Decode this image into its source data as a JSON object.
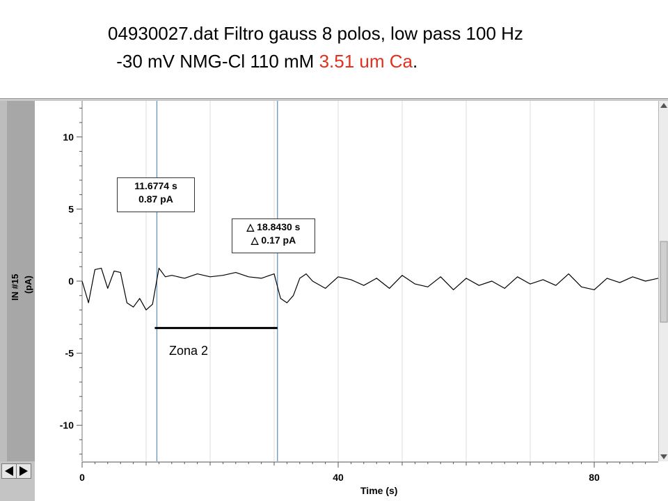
{
  "slide_title": {
    "line1": "04930027.dat Filtro gauss 8 polos, low pass 100 Hz",
    "line2_prefix": " -30 mV NMG-Cl 110 mM ",
    "line2_red": "3.51 um Ca",
    "line2_suffix": "."
  },
  "y_axis": {
    "channel_label": "IN #15",
    "unit_label": "(pA)",
    "ticks": [
      "10",
      "5",
      "0",
      "-5",
      "-10"
    ]
  },
  "x_axis": {
    "label": "Time (s)",
    "ticks": [
      "0",
      "40",
      "80"
    ]
  },
  "cursor_readout": {
    "time": "11.6774 s",
    "value": "0.87 pA"
  },
  "delta_readout": {
    "time": "18.8430 s",
    "value": "0.17 pA"
  },
  "annotation": {
    "zone_label": "Zona 2"
  },
  "colors": {
    "cursor_line": "#5b8db5",
    "highlight_title": "#e0301e",
    "trace": "#000000"
  },
  "icons": {
    "scale_up": "triangle-up-icon",
    "scale_down": "triangle-down-icon",
    "scroll_left": "triangle-left-icon",
    "scroll_right": "triangle-right-icon",
    "delta": "delta-icon"
  },
  "chart_data": {
    "type": "line",
    "xlabel": "Time (s)",
    "ylabel": "IN #15 (pA)",
    "xlim": [
      0,
      90
    ],
    "ylim": [
      -12.5,
      12.5
    ],
    "x_ticks": [
      0,
      40,
      80
    ],
    "y_ticks": [
      10,
      5,
      0,
      -5,
      -10
    ],
    "cursors_x": [
      11.68,
      30.52
    ],
    "series": [
      {
        "x": [
          0,
          1,
          2,
          3,
          4,
          5,
          6,
          7,
          8,
          9,
          10,
          11,
          12,
          13,
          14,
          16,
          18,
          20,
          22,
          24,
          26,
          28,
          30,
          31,
          32,
          33,
          34,
          35,
          36,
          38,
          40,
          42,
          44,
          46,
          48,
          50,
          52,
          54,
          56,
          58,
          60,
          62,
          64,
          66,
          68,
          70,
          72,
          74,
          76,
          78,
          80,
          82,
          84,
          86,
          88,
          90
        ],
        "values": [
          0.0,
          -1.5,
          0.8,
          0.9,
          -0.5,
          0.7,
          0.6,
          -1.5,
          -1.8,
          -1.2,
          -2.0,
          -1.6,
          0.9,
          0.3,
          0.4,
          0.2,
          0.5,
          0.3,
          0.4,
          0.6,
          0.3,
          0.2,
          0.5,
          -1.2,
          -1.5,
          -1.0,
          0.2,
          0.5,
          0.0,
          -0.5,
          0.3,
          0.1,
          -0.3,
          0.2,
          -0.5,
          0.4,
          -0.2,
          -0.4,
          0.3,
          -0.6,
          0.2,
          -0.3,
          0.0,
          -0.5,
          0.3,
          -0.2,
          0.1,
          -0.3,
          0.5,
          -0.4,
          -0.6,
          0.2,
          -0.1,
          0.3,
          0.0,
          0.2
        ]
      }
    ]
  }
}
